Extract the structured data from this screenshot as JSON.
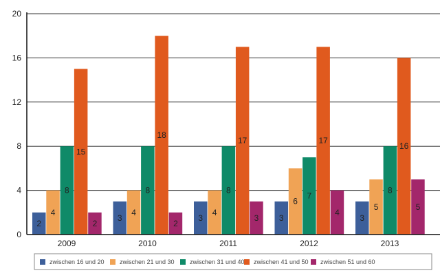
{
  "chart_data": {
    "type": "bar",
    "categories": [
      "2009",
      "2010",
      "2011",
      "2012",
      "2013"
    ],
    "series": [
      {
        "name": "zwischen 16 und 20",
        "color": "#3d5f9a",
        "values": [
          2,
          3,
          3,
          3,
          3
        ]
      },
      {
        "name": "zwischen 21 und 30",
        "color": "#f0a355",
        "values": [
          4,
          4,
          4,
          6,
          5
        ]
      },
      {
        "name": "zwischen 31 und 40",
        "color": "#0f8a68",
        "values": [
          8,
          8,
          8,
          7,
          8
        ]
      },
      {
        "name": "zwischen 41 und 50",
        "color": "#e05a1e",
        "values": [
          15,
          18,
          17,
          17,
          16
        ]
      },
      {
        "name": "zwischen 51 und 60",
        "color": "#a3276b",
        "values": [
          2,
          2,
          3,
          4,
          5
        ]
      }
    ],
    "yticks": [
      0,
      4,
      8,
      12,
      16,
      20
    ],
    "ylim": [
      0,
      20
    ],
    "grid": true,
    "data_labels": true,
    "legend": "bottom",
    "title": "",
    "xlabel": "",
    "ylabel": ""
  }
}
